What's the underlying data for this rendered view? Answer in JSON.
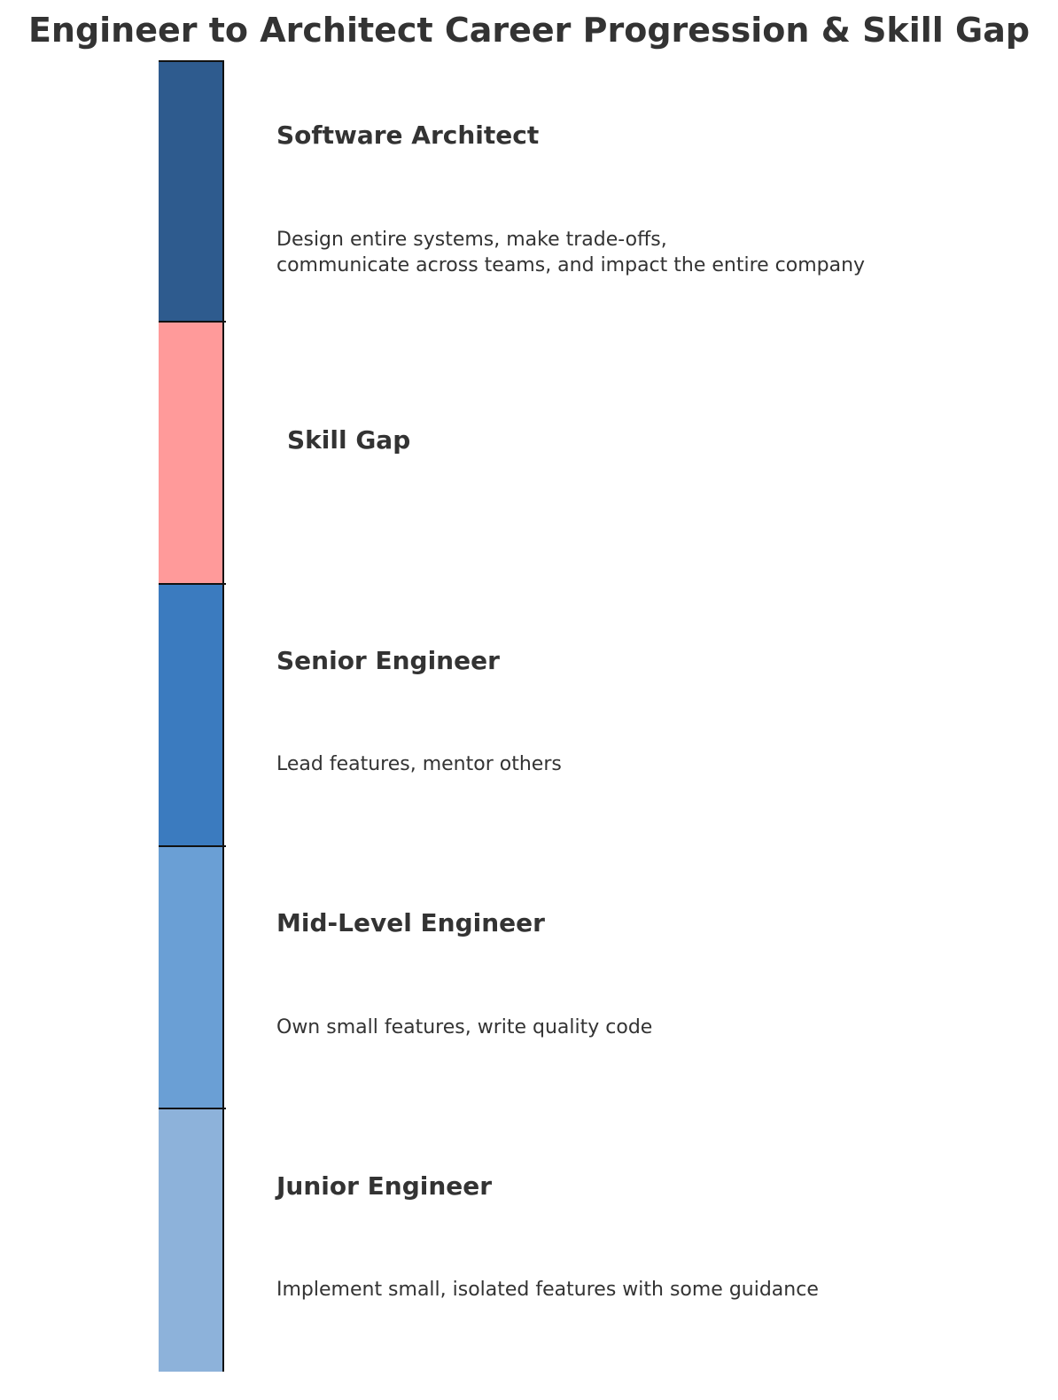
{
  "title": "Engineer to Architect Career Progression & Skill Gap",
  "levels": [
    {
      "name": "Software Architect",
      "description": "Design entire systems, make trade-offs,\ncommunicate across teams, and impact the entire company",
      "color": "#2e5b8e"
    },
    {
      "name": "Skill Gap",
      "description": "",
      "color": "#ff9a9a"
    },
    {
      "name": "Senior Engineer",
      "description": "Lead features, mentor others",
      "color": "#3b7bbf"
    },
    {
      "name": "Mid-Level Engineer",
      "description": "Own small features, write quality code",
      "color": "#6a9fd5"
    },
    {
      "name": "Junior Engineer",
      "description": "Implement small, isolated features with some guidance",
      "color": "#8db2da"
    }
  ]
}
